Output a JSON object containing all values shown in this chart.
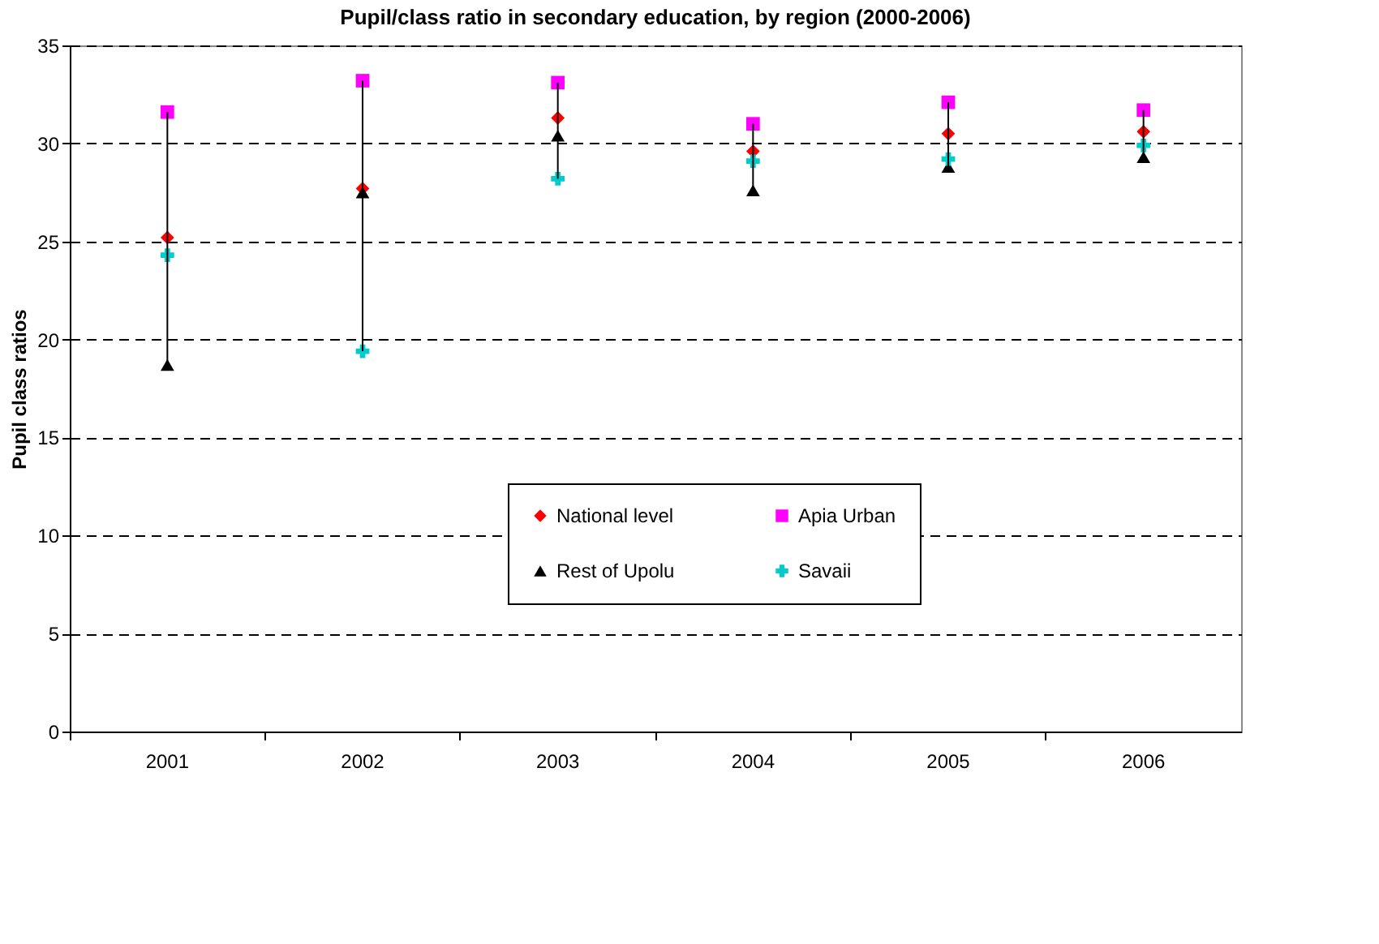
{
  "chart_data": {
    "type": "scatter",
    "title": "Pupil/class ratio in secondary education, by region (2000-2006)",
    "ylabel": "Pupil class ratios",
    "categories": [
      "2001",
      "2002",
      "2003",
      "2004",
      "2005",
      "2006"
    ],
    "series": [
      {
        "name": "National level",
        "color": "#ff0000",
        "marker": "diamond",
        "values": [
          25.2,
          27.7,
          31.3,
          29.6,
          30.5,
          30.6
        ]
      },
      {
        "name": "Apia Urban",
        "color": "#ff00ff",
        "marker": "square",
        "values": [
          31.6,
          33.2,
          33.1,
          31.0,
          32.1,
          31.7
        ]
      },
      {
        "name": "Rest of Upolu",
        "color": "#000000",
        "marker": "triangle",
        "values": [
          18.7,
          27.5,
          30.4,
          27.6,
          28.8,
          29.3
        ]
      },
      {
        "name": "Savaii",
        "color": "#00cccc",
        "marker": "cross",
        "values": [
          24.3,
          19.4,
          28.2,
          29.1,
          29.2,
          29.9
        ]
      }
    ],
    "ylim": [
      0,
      35
    ],
    "yticks": [
      0,
      5,
      10,
      15,
      20,
      25,
      30,
      35
    ],
    "grid": "y",
    "legend": "center"
  }
}
